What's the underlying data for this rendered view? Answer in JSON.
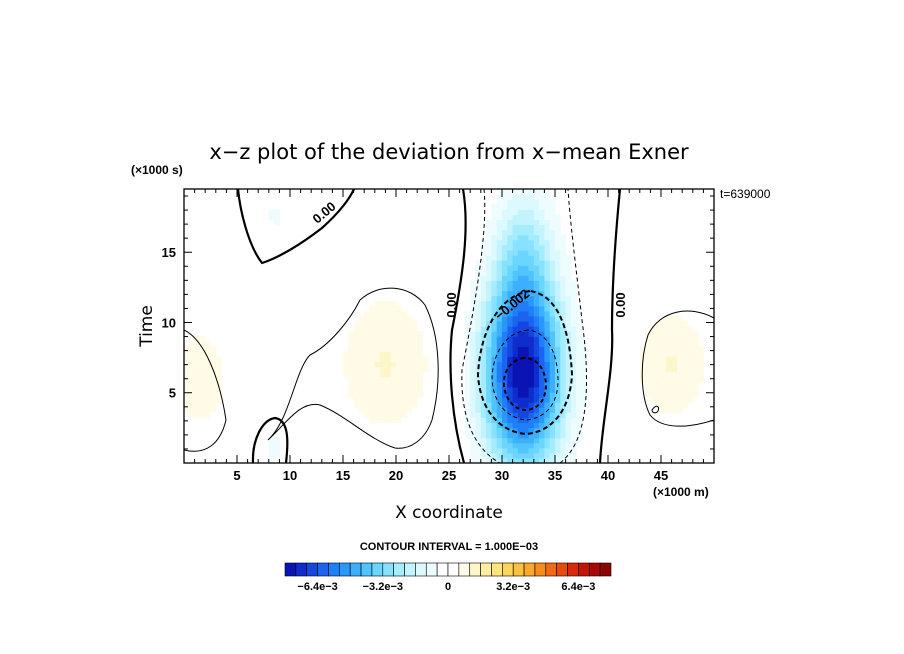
{
  "chart_data": {
    "type": "heatmap",
    "title": "x−z plot of the deviation from x−mean Exner",
    "xlabel": "X coordinate",
    "ylabel": "Time",
    "x_unit": "(×1000 m)",
    "y_unit": "(×1000 s)",
    "time_label": "t=639000",
    "xlim": [
      0,
      50
    ],
    "ylim": [
      0,
      19.5
    ],
    "x_ticks": [
      "5",
      "10",
      "15",
      "20",
      "25",
      "30",
      "35",
      "40",
      "45"
    ],
    "y_ticks": [
      "5",
      "10",
      "15"
    ],
    "contour_interval_label": "CONTOUR INTERVAL = 1.000E−03",
    "colorbar_labels": [
      "−6.4e−3",
      "−3.2e−3",
      "0",
      "3.2e−3",
      "6.4e−3"
    ],
    "colorbar_colors": [
      "#0a14b4",
      "#0f2ccc",
      "#1446e0",
      "#1a64f0",
      "#1f7ff8",
      "#2a98fb",
      "#3cb0fc",
      "#52c4fd",
      "#6ad6fd",
      "#86e2fe",
      "#a4ecfe",
      "#c2f3fe",
      "#dcf9ff",
      "#eefcff",
      "#ffffff",
      "#ffffff",
      "#fffbe6",
      "#fef6c8",
      "#fdeea4",
      "#fde47c",
      "#fcd45a",
      "#fbc040",
      "#f9a82c",
      "#f68c1e",
      "#f06c14",
      "#e64c0e",
      "#d82a0a",
      "#c41408",
      "#a80806",
      "#8c0404"
    ],
    "contour_labels": [
      "0.00",
      "0.00",
      "−0.002",
      "0.00"
    ],
    "blobs": [
      {
        "x": 32,
        "y": 6,
        "rx": 3.6,
        "ry": 6.2,
        "amp": -0.0075
      },
      {
        "x": 32,
        "y": 15.5,
        "rx": 2.8,
        "ry": 4.5,
        "amp": -0.0018
      },
      {
        "x": 32,
        "y": 11,
        "rx": 3.2,
        "ry": 5.0,
        "amp": -0.0012
      },
      {
        "x": 9,
        "y": 17.5,
        "rx": 5.5,
        "ry": 3.2,
        "amp": -0.0006
      },
      {
        "x": 8.5,
        "y": 1.2,
        "rx": 2.0,
        "ry": 2.2,
        "amp": -0.0006
      },
      {
        "x": 19,
        "y": 7,
        "rx": 4.5,
        "ry": 5.0,
        "amp": 0.0011
      },
      {
        "x": 46,
        "y": 7,
        "rx": 3.5,
        "ry": 4.0,
        "amp": 0.0011
      },
      {
        "x": 1.5,
        "y": 6,
        "rx": 3.0,
        "ry": 4.0,
        "amp": 0.0009
      },
      {
        "x": 19,
        "y": 17,
        "rx": 8,
        "ry": 4,
        "amp": 0.0003
      }
    ]
  }
}
